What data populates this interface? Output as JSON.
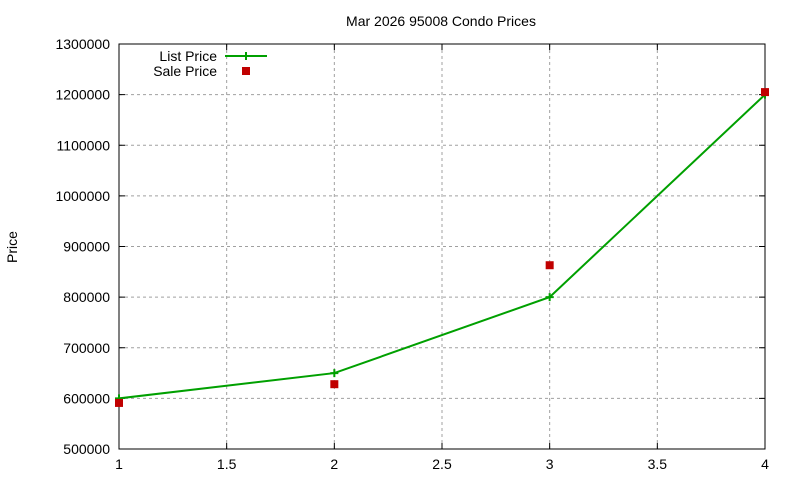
{
  "chart_data": {
    "type": "line",
    "title": "Mar 2026 95008 Condo Prices",
    "xlabel": "",
    "ylabel": "Price",
    "xlim": [
      1,
      4
    ],
    "ylim": [
      500000,
      1300000
    ],
    "x_ticks": [
      "1",
      "1.5",
      "2",
      "2.5",
      "3",
      "3.5",
      "4"
    ],
    "y_ticks": [
      "500000",
      "600000",
      "700000",
      "800000",
      "900000",
      "1000000",
      "1100000",
      "1200000",
      "1300000"
    ],
    "grid": true,
    "legend_position": "top-left",
    "x": [
      1,
      2,
      3,
      4
    ],
    "series": [
      {
        "name": "List Price",
        "style": "linespoints",
        "color": "#00a000",
        "values": [
          600000,
          650000,
          800000,
          1200000
        ]
      },
      {
        "name": "Sale Price",
        "style": "points",
        "color": "#c00000",
        "values": [
          591000,
          628000,
          863000,
          1205000
        ]
      }
    ]
  }
}
